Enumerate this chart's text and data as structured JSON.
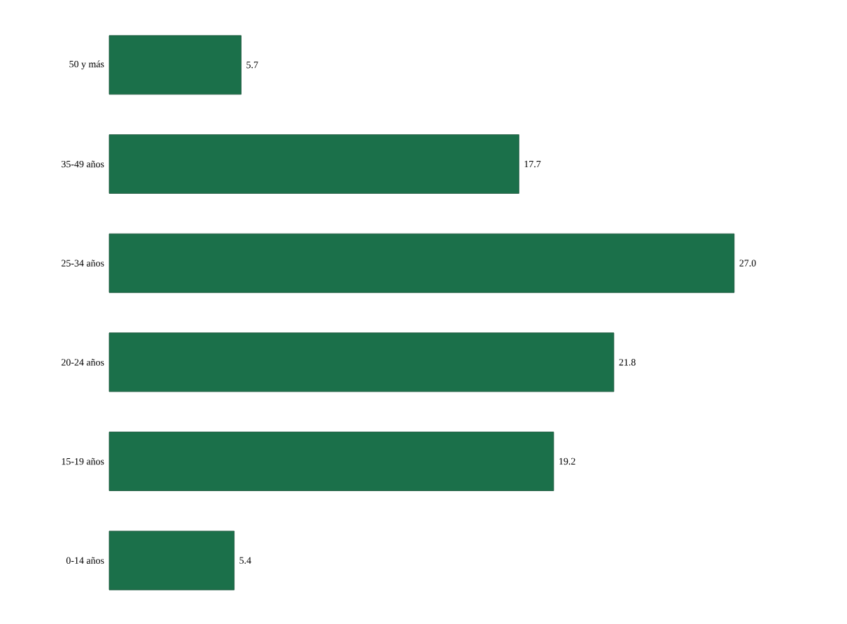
{
  "chart_data": {
    "type": "bar",
    "orientation": "horizontal",
    "categories": [
      "50 y más",
      "35-49 años",
      "25-34 años",
      "20-24 años",
      "15-19 años",
      "0-14 años"
    ],
    "values": [
      5.7,
      17.7,
      27.0,
      21.8,
      19.2,
      5.4
    ],
    "value_labels": [
      "5.7",
      "17.7",
      "27.0",
      "21.8",
      "19.2",
      "5.4"
    ],
    "color": "#1b704a"
  }
}
